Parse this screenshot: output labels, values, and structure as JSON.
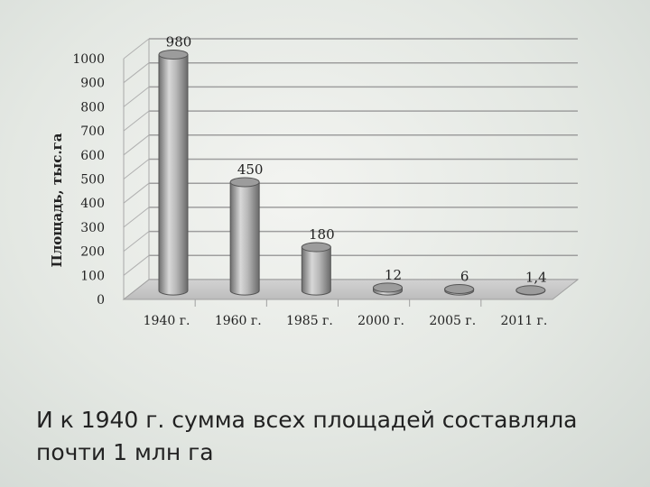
{
  "chart_data": {
    "type": "bar",
    "title": "",
    "xlabel": "",
    "ylabel": "Площадь, тыс.га",
    "categories": [
      "1940 г.",
      "1960 г.",
      "1985 г.",
      "2000 г.",
      "2005 г.",
      "2011 г."
    ],
    "values": [
      980,
      450,
      180,
      12,
      6,
      1.4
    ],
    "data_labels": [
      "980",
      "450",
      "180",
      "12",
      "6",
      "1,4"
    ],
    "ylim": [
      0,
      1000
    ],
    "yticks": [
      "0",
      "100",
      "200",
      "300",
      "400",
      "500",
      "600",
      "700",
      "800",
      "900",
      "1000"
    ],
    "grid": true,
    "style": "3d-cylinder",
    "colors": {
      "bar": "#9a9a9a",
      "floor": "#c8c8c8",
      "grid": "#9e9e9e"
    }
  },
  "caption": "И к 1940 г. сумма всех площадей составляла почти 1 млн га"
}
